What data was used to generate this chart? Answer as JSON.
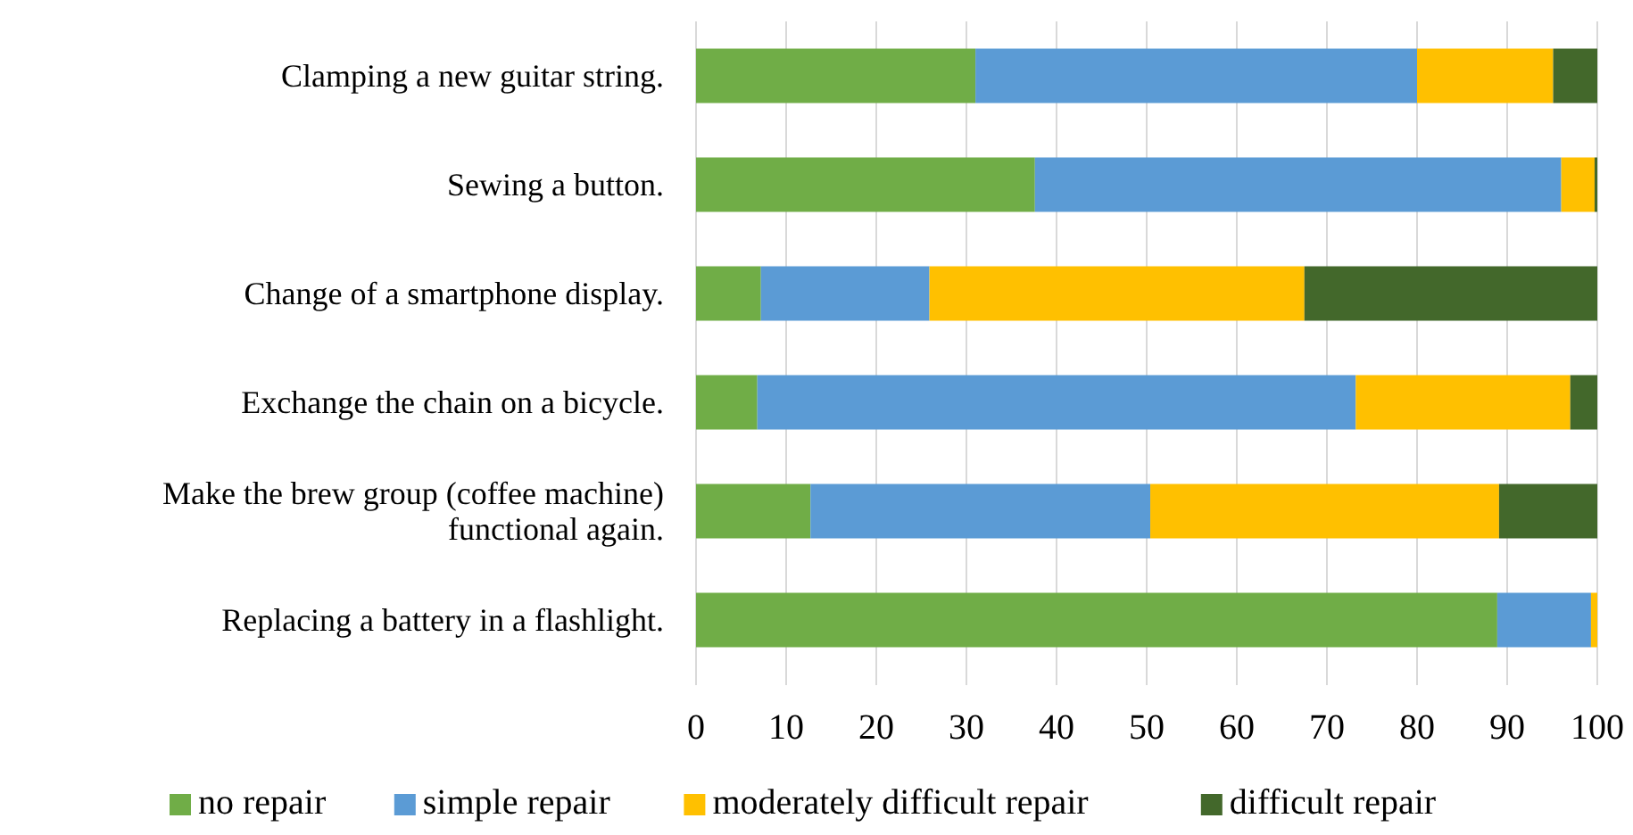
{
  "chart_data": {
    "type": "bar",
    "orientation": "horizontal",
    "stacked": true,
    "categories": [
      "Clamping a new guitar string.",
      "Sewing a button.",
      "Change of a smartphone display.",
      "Exchange the chain on a bicycle.",
      "Make the brew group (coffee machine) functional again.",
      "Replacing a battery in a flashlight."
    ],
    "series": [
      {
        "name": "no repair",
        "color": "#70ad47",
        "values": [
          31.0,
          37.6,
          7.2,
          6.8,
          12.7,
          88.9
        ]
      },
      {
        "name": "simple repair",
        "color": "#5b9bd5",
        "values": [
          49.0,
          58.4,
          18.7,
          66.4,
          37.7,
          10.4
        ]
      },
      {
        "name": "moderately difficult repair",
        "color": "#ffc000",
        "values": [
          15.1,
          3.7,
          41.6,
          23.8,
          38.7,
          0.7
        ]
      },
      {
        "name": "difficult repair",
        "color": "#43682b",
        "values": [
          4.9,
          0.3,
          32.5,
          3.0,
          10.9,
          0
        ]
      }
    ],
    "xlim": [
      0,
      100
    ],
    "xticks": [
      0,
      10,
      20,
      30,
      40,
      50,
      60,
      70,
      80,
      90,
      100
    ],
    "grid": "x",
    "legend": "bottom"
  }
}
